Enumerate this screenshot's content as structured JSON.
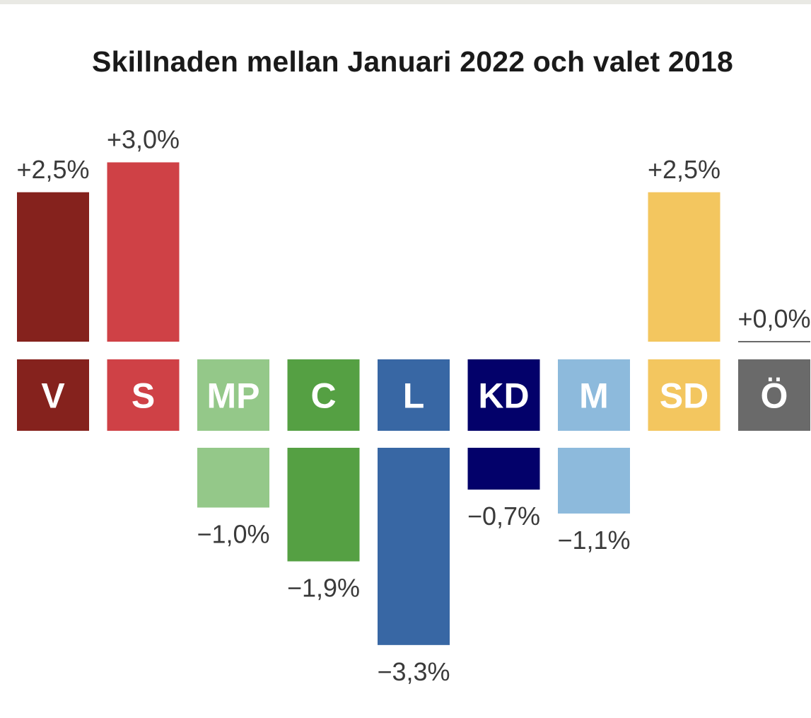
{
  "chart_data": {
    "type": "bar",
    "title": "Skillnaden mellan Januari 2022 och valet 2018",
    "xlabel": "",
    "ylabel": "",
    "unit": "%",
    "ylim": [
      -3.3,
      3.0
    ],
    "categories": [
      "V",
      "S",
      "MP",
      "C",
      "L",
      "KD",
      "M",
      "SD",
      "Ö"
    ],
    "values": [
      2.5,
      3.0,
      -1.0,
      -1.9,
      -3.3,
      -0.7,
      -1.1,
      2.5,
      0.0
    ],
    "value_labels": [
      "+2,5%",
      "+3,0%",
      "−1,0%",
      "−1,9%",
      "−3,3%",
      "−0,7%",
      "−1,1%",
      "+2,5%",
      "+0,0%"
    ],
    "colors": [
      "#85221d",
      "#cf4146",
      "#94c889",
      "#55a043",
      "#3867a4",
      "#03016a",
      "#8dbadc",
      "#f3c65f",
      "#6a6a6a"
    ]
  }
}
